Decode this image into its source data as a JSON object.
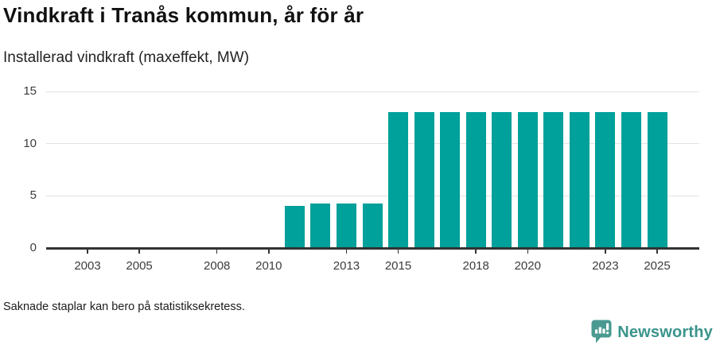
{
  "header": {
    "title": "Vindkraft i Tranås kommun, år för år",
    "subtitle": "Installerad vindkraft (maxeffekt, MW)"
  },
  "chart_data": {
    "type": "bar",
    "title": "Vindkraft i Tranås kommun, år för år",
    "subtitle": "Installerad vindkraft (maxeffekt, MW)",
    "ylabel": "Installerad vindkraft (maxeffekt, MW)",
    "xlabel": "",
    "x": [
      2011,
      2012,
      2013,
      2014,
      2015,
      2016,
      2017,
      2018,
      2019,
      2020,
      2021,
      2022,
      2023,
      2024,
      2025
    ],
    "values": [
      4,
      4.3,
      4.3,
      4.3,
      13,
      13,
      13,
      13,
      13,
      13,
      13,
      13,
      13,
      13,
      13
    ],
    "xlim": [
      2001.4,
      2026.6
    ],
    "ylim": [
      0,
      15
    ],
    "yticks": [
      0,
      5,
      10,
      15
    ],
    "xticks": [
      2003,
      2005,
      2008,
      2010,
      2013,
      2015,
      2018,
      2020,
      2023,
      2025
    ],
    "grid": true,
    "legend": "none",
    "bar_color": "#00a09b",
    "axis_color": "#333333",
    "grid_color": "#e2e2e2"
  },
  "footer": {
    "note": "Saknade staplar kan bero på statistiksekretess.",
    "logo_text": "Newsworthy",
    "logo_color": "#3a948c"
  }
}
